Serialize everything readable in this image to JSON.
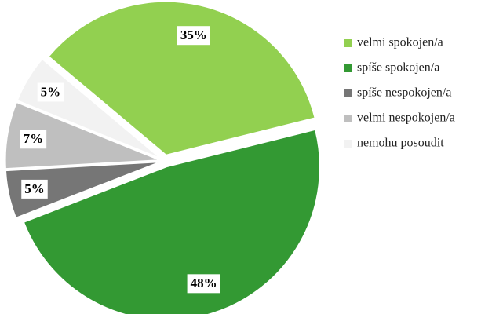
{
  "chart_data": {
    "type": "pie",
    "categories": [
      "velmi spokojen/a",
      "spíše spokojen/a",
      "spíše nespokojen/a",
      "velmi nespokojen/a",
      "nemohu posoudit"
    ],
    "values": [
      35,
      48,
      5,
      7,
      5
    ],
    "value_labels": [
      "35%",
      "48%",
      "5%",
      "7%",
      "5%"
    ],
    "colors": [
      "#92d050",
      "#339933",
      "#767676",
      "#bfbfbf",
      "#f2f2f2"
    ],
    "legend": "right"
  }
}
